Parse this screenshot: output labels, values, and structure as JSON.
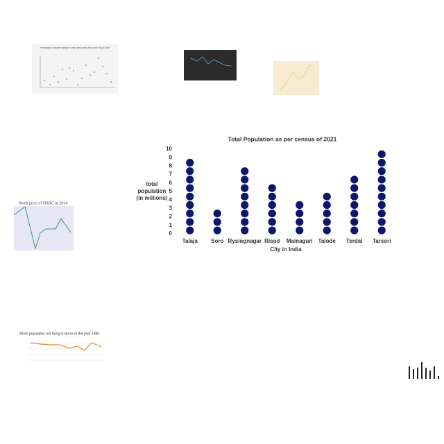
{
  "chart_data": {
    "type": "dot",
    "title": "Total Population as per census of 2021",
    "y_label": [
      "total",
      "population",
      "(in millions)"
    ],
    "x_label": "City in India",
    "categories": [
      "Talaja",
      "Soro",
      "Rysingnagar",
      "Risod",
      "Mainaguri",
      "Talode",
      "Terdal",
      "Tarsori"
    ],
    "values": [
      9,
      3,
      8,
      6,
      4,
      5,
      7,
      10
    ],
    "color": "#0c166e",
    "ylim": [
      0,
      10
    ],
    "yticks": [
      0,
      1,
      2,
      3,
      4,
      5,
      6,
      7,
      8,
      9,
      10
    ]
  },
  "thumbnails": [
    {
      "title": "Percentage of people working in urban area during the month of April 1998"
    },
    {
      "title": "Stock price of HSBC in 2014"
    },
    {
      "title": "Urban population not living in slums in the year 1995"
    }
  ]
}
